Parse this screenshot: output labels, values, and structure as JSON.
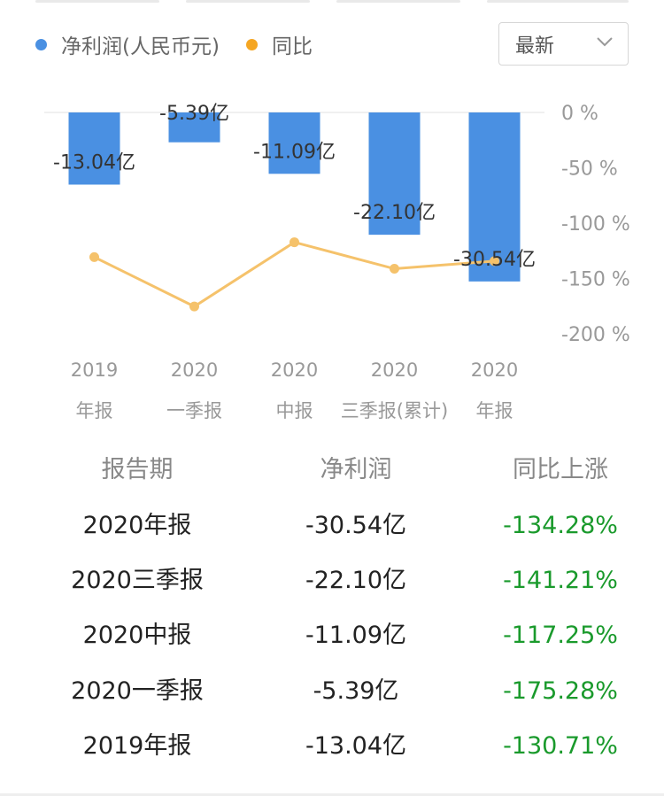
{
  "legend": {
    "net_profit": {
      "label": "净利润(人民币元)",
      "color": "#4a90e2"
    },
    "yoy": {
      "label": "同比",
      "color": "#f5a623"
    }
  },
  "dropdown": {
    "value": "最新",
    "icon": "chevron-down-icon"
  },
  "chart_data": {
    "type": "bar",
    "categories": [
      [
        "2019",
        "年报"
      ],
      [
        "2020",
        "一季报"
      ],
      [
        "2020",
        "中报"
      ],
      [
        "2020",
        "三季报(累计)"
      ],
      [
        "2020",
        "年报"
      ]
    ],
    "series": [
      {
        "name": "净利润(人民币元)",
        "type": "bar",
        "values": [
          -13.04,
          -5.39,
          -11.09,
          -22.1,
          -30.54
        ],
        "labels": [
          "-13.04亿",
          "-5.39亿",
          "-11.09亿",
          "-22.10亿",
          "-30.54亿"
        ],
        "color": "#4a90e2"
      },
      {
        "name": "同比",
        "type": "line",
        "values": [
          -130.71,
          -175.28,
          -117.25,
          -141.21,
          -134.28
        ],
        "color": "#f5c26b"
      }
    ],
    "y_right": {
      "ticks": [
        "0 %",
        "-50 %",
        "-100 %",
        "-150 %",
        "-200 %"
      ],
      "tick_values": [
        0,
        -50,
        -100,
        -150,
        -200
      ],
      "range": [
        -200,
        0
      ]
    },
    "bar_axis_max": -40,
    "grid": false,
    "legend_position": "top-left"
  },
  "table": {
    "headers": [
      "报告期",
      "净利润",
      "同比上涨"
    ],
    "rows": [
      [
        "2020年报",
        "-30.54亿",
        "-134.28%"
      ],
      [
        "2020三季报",
        "-22.10亿",
        "-141.21%"
      ],
      [
        "2020中报",
        "-11.09亿",
        "-117.25%"
      ],
      [
        "2020一季报",
        "-5.39亿",
        "-175.28%"
      ],
      [
        "2019年报",
        "-13.04亿",
        "-130.71%"
      ]
    ]
  }
}
